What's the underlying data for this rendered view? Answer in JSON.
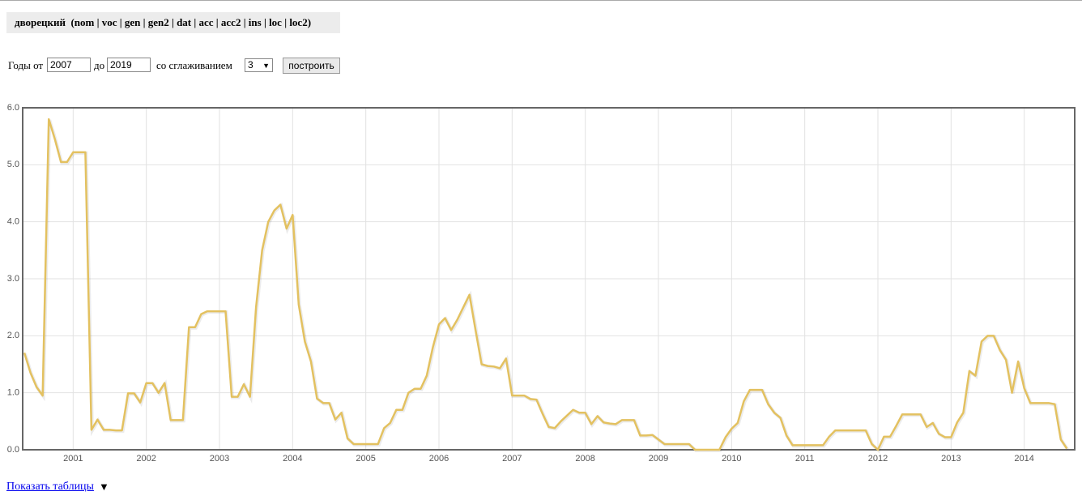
{
  "header": {
    "title": "дворецкий  (nom | voc | gen | gen2 | dat | acc | acc2 | ins | loc | loc2)"
  },
  "form": {
    "from_label": "Годы от",
    "from_value": "2007",
    "to_label": "до",
    "to_value": "2019",
    "smoothing_label": "со сглаживанием",
    "smoothing_value": "3",
    "button": "построить"
  },
  "footer": {
    "link": "Показать таблицы",
    "arrow": "▼"
  },
  "chart_data": {
    "type": "line",
    "color": "#e3c160",
    "grid": true,
    "xlim": [
      2000.31,
      2014.69
    ],
    "xticks": [
      2001,
      2002,
      2003,
      2004,
      2005,
      2006,
      2007,
      2008,
      2009,
      2010,
      2011,
      2012,
      2013,
      2014
    ],
    "ylim": [
      0,
      6
    ],
    "yticks": [
      {
        "value": 0,
        "label": "0.0"
      },
      {
        "value": 1,
        "label": "1.0"
      },
      {
        "value": 2,
        "label": "2.0"
      },
      {
        "value": 3,
        "label": "3.0"
      },
      {
        "value": 4,
        "label": "4.0"
      },
      {
        "value": 5,
        "label": "5.0"
      },
      {
        "value": 6,
        "label": "6.0"
      }
    ],
    "x": [
      2000.333,
      2000.417,
      2000.5,
      2000.583,
      2000.667,
      2000.75,
      2000.833,
      2000.917,
      2001,
      2001.083,
      2001.167,
      2001.25,
      2001.333,
      2001.417,
      2001.5,
      2001.583,
      2001.667,
      2001.75,
      2001.833,
      2001.917,
      2002,
      2002.083,
      2002.167,
      2002.25,
      2002.333,
      2002.417,
      2002.5,
      2002.583,
      2002.667,
      2002.75,
      2002.833,
      2002.917,
      2003,
      2003.083,
      2003.167,
      2003.25,
      2003.333,
      2003.417,
      2003.5,
      2003.583,
      2003.667,
      2003.75,
      2003.833,
      2003.917,
      2004,
      2004.083,
      2004.167,
      2004.25,
      2004.333,
      2004.417,
      2004.5,
      2004.583,
      2004.667,
      2004.75,
      2004.833,
      2004.917,
      2005,
      2005.083,
      2005.167,
      2005.25,
      2005.333,
      2005.417,
      2005.5,
      2005.583,
      2005.667,
      2005.75,
      2005.833,
      2005.917,
      2006,
      2006.083,
      2006.167,
      2006.25,
      2006.333,
      2006.417,
      2006.5,
      2006.583,
      2006.667,
      2006.75,
      2006.833,
      2006.917,
      2007,
      2007.083,
      2007.167,
      2007.25,
      2007.333,
      2007.417,
      2007.5,
      2007.583,
      2007.667,
      2007.75,
      2007.833,
      2007.917,
      2008,
      2008.083,
      2008.167,
      2008.25,
      2008.333,
      2008.417,
      2008.5,
      2008.583,
      2008.667,
      2008.75,
      2008.833,
      2008.917,
      2009,
      2009.083,
      2009.167,
      2009.25,
      2009.333,
      2009.417,
      2009.5,
      2009.583,
      2009.667,
      2009.75,
      2009.833,
      2009.917,
      2010,
      2010.083,
      2010.167,
      2010.25,
      2010.333,
      2010.417,
      2010.5,
      2010.583,
      2010.667,
      2010.75,
      2010.833,
      2010.917,
      2011,
      2011.083,
      2011.167,
      2011.25,
      2011.333,
      2011.417,
      2011.5,
      2011.583,
      2011.667,
      2011.75,
      2011.833,
      2011.917,
      2012,
      2012.083,
      2012.167,
      2012.25,
      2012.333,
      2012.417,
      2012.5,
      2012.583,
      2012.667,
      2012.75,
      2012.833,
      2012.917,
      2013,
      2013.083,
      2013.167,
      2013.25,
      2013.333,
      2013.417,
      2013.5,
      2013.583,
      2013.667,
      2013.75,
      2013.833,
      2013.917,
      2014,
      2014.083,
      2014.167,
      2014.25,
      2014.333,
      2014.417,
      2014.5,
      2014.583
    ],
    "values": [
      1.7,
      1.35,
      1.1,
      0.95,
      5.8,
      5.45,
      5.05,
      5.05,
      5.22,
      5.22,
      5.22,
      0.35,
      0.53,
      0.35,
      0.35,
      0.34,
      0.34,
      0.99,
      0.99,
      0.83,
      1.17,
      1.17,
      1.0,
      1.17,
      0.52,
      0.52,
      0.52,
      2.15,
      2.15,
      2.38,
      2.43,
      2.43,
      2.43,
      2.43,
      0.93,
      0.93,
      1.15,
      0.93,
      2.5,
      3.5,
      4.0,
      4.2,
      4.3,
      3.88,
      4.12,
      2.55,
      1.9,
      1.55,
      0.9,
      0.82,
      0.82,
      0.53,
      0.65,
      0.2,
      0.1,
      0.1,
      0.1,
      0.1,
      0.1,
      0.38,
      0.47,
      0.7,
      0.7,
      1.0,
      1.07,
      1.07,
      1.3,
      1.8,
      2.2,
      2.31,
      2.1,
      2.28,
      2.5,
      2.72,
      2.1,
      1.5,
      1.47,
      1.46,
      1.43,
      1.6,
      0.95,
      0.95,
      0.95,
      0.89,
      0.88,
      0.63,
      0.4,
      0.38,
      0.5,
      0.6,
      0.7,
      0.65,
      0.65,
      0.45,
      0.59,
      0.48,
      0.46,
      0.45,
      0.52,
      0.52,
      0.52,
      0.25,
      0.25,
      0.26,
      0.18,
      0.1,
      0.1,
      0.1,
      0.1,
      0.1,
      0,
      0,
      0,
      0,
      0,
      0.22,
      0.37,
      0.47,
      0.85,
      1.05,
      1.05,
      1.05,
      0.8,
      0.65,
      0.56,
      0.25,
      0.08,
      0.08,
      0.08,
      0.08,
      0.08,
      0.08,
      0.23,
      0.34,
      0.34,
      0.34,
      0.34,
      0.34,
      0.34,
      0.1,
      0,
      0.23,
      0.23,
      0.42,
      0.62,
      0.62,
      0.62,
      0.62,
      0.4,
      0.47,
      0.28,
      0.22,
      0.22,
      0.48,
      0.65,
      1.38,
      1.3,
      1.9,
      2.0,
      2.0,
      1.75,
      1.58,
      1.0,
      1.55,
      1.08,
      0.82,
      0.82,
      0.82,
      0.82,
      0.8,
      0.18,
      0.02
    ]
  }
}
